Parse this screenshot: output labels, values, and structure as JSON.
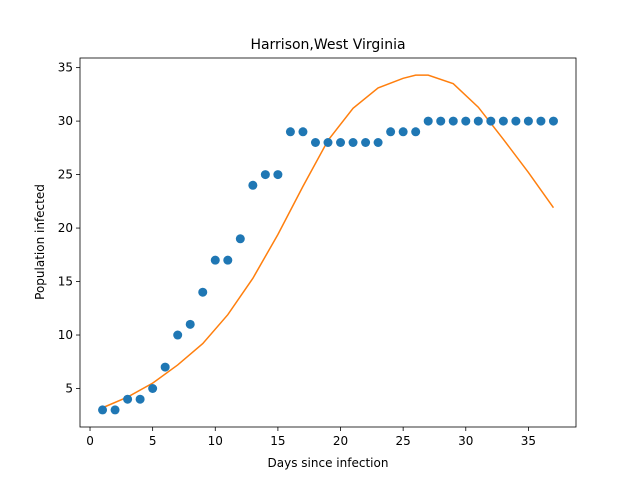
{
  "chart_data": {
    "type": "scatter",
    "title": "Harrison,West Virginia",
    "xlabel": "Days since infection",
    "ylabel": "Population infected",
    "xlim": [
      -0.8,
      38.8
    ],
    "ylim": [
      1.4,
      35.9
    ],
    "xticks": [
      0,
      5,
      10,
      15,
      20,
      25,
      30,
      35
    ],
    "yticks": [
      5,
      10,
      15,
      20,
      25,
      30,
      35
    ],
    "grid": false,
    "series": [
      {
        "kind": "scatter",
        "color": "#1f77b4",
        "x": [
          1,
          2,
          3,
          4,
          5,
          6,
          7,
          8,
          9,
          10,
          11,
          12,
          13,
          14,
          15,
          16,
          17,
          18,
          19,
          20,
          21,
          22,
          23,
          24,
          25,
          26,
          27,
          28,
          29,
          30,
          31,
          32,
          33,
          34,
          35,
          36,
          37
        ],
        "y": [
          3,
          3,
          4,
          4,
          5,
          7,
          10,
          11,
          14,
          17,
          17,
          19,
          24,
          25,
          25,
          29,
          29,
          28,
          28,
          28,
          28,
          28,
          28,
          29,
          29,
          29,
          30,
          30,
          30,
          30,
          30,
          30,
          30,
          30,
          30,
          30,
          30
        ]
      },
      {
        "kind": "line",
        "color": "#ff7f0e",
        "x": [
          1,
          3,
          5,
          7,
          9,
          11,
          13,
          15,
          17,
          19,
          21,
          23,
          25,
          26,
          27,
          29,
          31,
          33,
          35,
          37
        ],
        "y": [
          3.2,
          4.2,
          5.5,
          7.2,
          9.2,
          11.9,
          15.3,
          19.4,
          23.9,
          28.2,
          31.2,
          33.1,
          34.0,
          34.3,
          34.3,
          33.5,
          31.3,
          28.3,
          25.2,
          21.9
        ]
      }
    ]
  }
}
